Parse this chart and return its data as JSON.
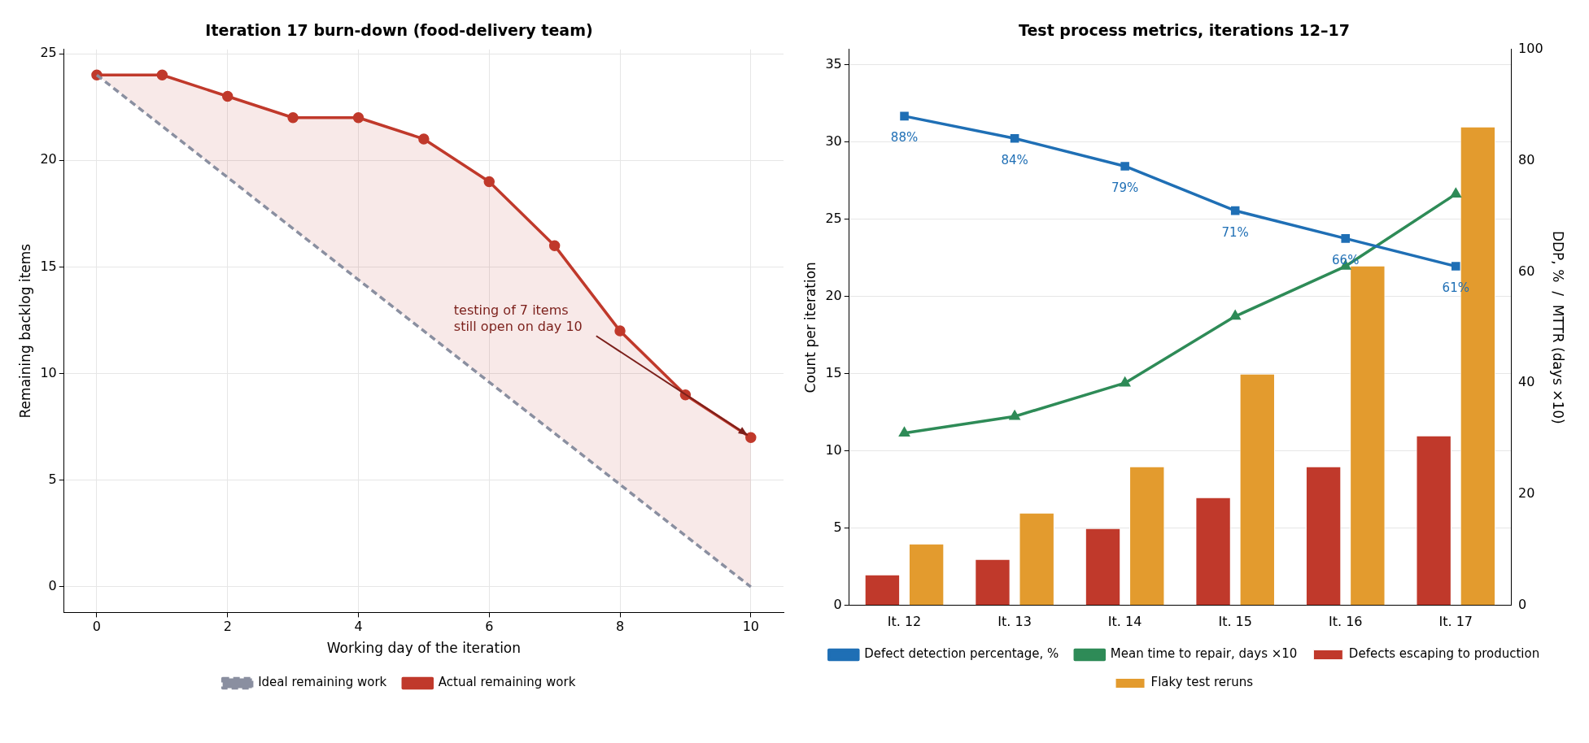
{
  "chart_data": [
    {
      "type": "line",
      "title": "Iteration 17 burn-down (food-delivery team)",
      "xlabel": "Working day of the iteration",
      "ylabel": "Remaining backlog items",
      "x": [
        0,
        1,
        2,
        3,
        4,
        5,
        6,
        7,
        8,
        9,
        10
      ],
      "series": [
        {
          "name": "Ideal remaining work",
          "color": "#8a8fa0",
          "line_style": "dashed",
          "marker": "none",
          "x": [
            0,
            10
          ],
          "values": [
            24,
            0
          ]
        },
        {
          "name": "Actual remaining work",
          "color": "#c0392b",
          "line_style": "solid",
          "marker": "circle",
          "values": [
            24,
            24,
            23,
            22,
            22,
            21,
            19,
            16,
            12,
            9,
            7
          ],
          "lower": [
            24,
            21.6,
            19.2,
            16.8,
            14.4,
            12,
            9.6,
            7.2,
            4.8,
            2.4,
            0
          ],
          "upper": [
            24,
            24,
            23,
            22,
            22,
            21,
            19,
            16,
            12,
            9,
            7
          ]
        }
      ],
      "xlim": [
        -0.5,
        10.5
      ],
      "xticks": [
        0,
        2,
        4,
        6,
        8,
        10
      ],
      "ylim": [
        -1.2,
        25.2
      ],
      "yticks": [
        0,
        5,
        10,
        15,
        20,
        25
      ],
      "grid": true,
      "legend": "bottom",
      "annotations": [
        {
          "text": "testing of 7 items\nstill open on day 10",
          "x": 10,
          "y": 7
        }
      ]
    },
    {
      "type": "bar",
      "title": "Test process metrics, iterations 12–17",
      "ylabel": "Count per iteration",
      "y2label": "DDP, %  /  MTTR (days ×10)",
      "categories": [
        "It. 12",
        "It. 13",
        "It. 14",
        "It. 15",
        "It. 16",
        "It. 17"
      ],
      "series": [
        {
          "name": "Defects escaping to production",
          "color": "#c0392b",
          "values": [
            2,
            3,
            5,
            7,
            9,
            11
          ]
        },
        {
          "name": "Flaky test reruns",
          "color": "#e39b2e",
          "values": [
            4,
            6,
            9,
            15,
            22,
            31
          ]
        },
        {
          "name": "Defect detection percentage, %",
          "type": "line",
          "axis": "y2",
          "color": "#1f6fb5",
          "marker": "square",
          "values": [
            88,
            84,
            79,
            71,
            66,
            61
          ],
          "value_labels": [
            "88%",
            "84%",
            "79%",
            "71%",
            "66%",
            "61%"
          ]
        },
        {
          "name": "Mean time to repair, days ×10",
          "type": "line",
          "axis": "y2",
          "color": "#2e8b57",
          "marker": "triangle",
          "values": [
            31,
            34,
            40,
            52,
            61,
            74
          ]
        }
      ],
      "ylim": [
        0,
        36
      ],
      "yticks": [
        0,
        5,
        10,
        15,
        20,
        25,
        30,
        35
      ],
      "y2lim": [
        0,
        100
      ],
      "y2ticks": [
        0,
        20,
        40,
        60,
        80,
        100
      ],
      "grid": "y",
      "legend": "bottom"
    }
  ]
}
